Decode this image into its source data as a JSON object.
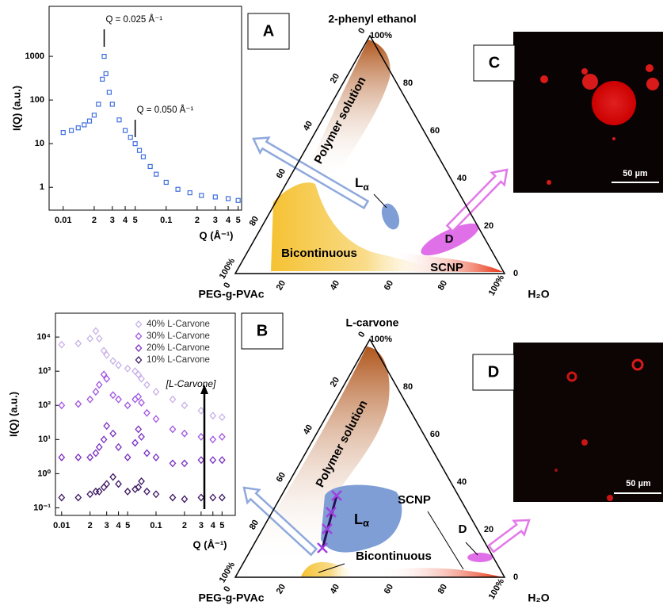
{
  "chart_data": [
    {
      "type": "scatter",
      "ylabel": "I(Q) (a.u.)",
      "xlabel": "Q (Å⁻¹)",
      "log_x": true,
      "log_y": true,
      "xlim": [
        0.0073,
        0.54
      ],
      "ylim": [
        0.3,
        14000
      ],
      "xticks": [
        0.01,
        {
          "value": 0.02,
          "label": "2"
        },
        {
          "value": 0.03,
          "label": "3"
        },
        {
          "value": 0.04,
          "label": "4"
        },
        {
          "value": 0.05,
          "label": "5"
        },
        0.1,
        {
          "value": 0.2,
          "label": "2"
        },
        {
          "value": 0.3,
          "label": "3"
        },
        {
          "value": 0.4,
          "label": "4"
        },
        {
          "value": 0.5,
          "label": "5"
        }
      ],
      "yticks": [
        1,
        10,
        100,
        1000
      ],
      "annotations": [
        {
          "text": "Q = 0.025 Å⁻¹",
          "x": 0.025
        },
        {
          "text": "Q = 0.050 Å⁻¹",
          "x": 0.05
        }
      ],
      "x": [
        0.01,
        0.012,
        0.014,
        0.016,
        0.018,
        0.02,
        0.022,
        0.024,
        0.025,
        0.026,
        0.028,
        0.03,
        0.035,
        0.04,
        0.045,
        0.05,
        0.055,
        0.06,
        0.07,
        0.08,
        0.1,
        0.13,
        0.17,
        0.22,
        0.3,
        0.4,
        0.5
      ],
      "series": [
        {
          "color": "#3f6fe0",
          "marker": "square",
          "values": [
            18,
            20,
            23,
            27,
            33,
            45,
            80,
            300,
            1000,
            400,
            150,
            80,
            35,
            20,
            14,
            10,
            7,
            5,
            3,
            2,
            1.3,
            0.9,
            0.75,
            0.65,
            0.6,
            0.55,
            0.5
          ]
        }
      ]
    },
    {
      "type": "scatter",
      "ylabel": "I(Q) (a.u.)",
      "xlabel": "Q (Å⁻¹)",
      "log_x": true,
      "log_y": true,
      "xlim": [
        0.0086,
        0.69
      ],
      "ylim": [
        0.06,
        50000
      ],
      "xticks": [
        0.01,
        {
          "value": 0.02,
          "label": "2"
        },
        {
          "value": 0.03,
          "label": "3"
        },
        {
          "value": 0.04,
          "label": "4"
        },
        {
          "value": 0.05,
          "label": "5"
        },
        0.1,
        {
          "value": 0.2,
          "label": "2"
        },
        {
          "value": 0.3,
          "label": "3"
        },
        {
          "value": 0.4,
          "label": "4"
        },
        {
          "value": 0.5,
          "label": "5"
        }
      ],
      "yticks": [
        {
          "value": 0.1,
          "label": "10⁻¹"
        },
        {
          "value": 1,
          "label": "10⁰"
        },
        {
          "value": 10,
          "label": "10¹"
        },
        {
          "value": 100,
          "label": "10²"
        },
        {
          "value": 1000,
          "label": "10³"
        },
        {
          "value": 10000,
          "label": "10⁴"
        }
      ],
      "annotation": "[L-Carvone]",
      "x": [
        0.01,
        0.015,
        0.02,
        0.023,
        0.025,
        0.028,
        0.03,
        0.035,
        0.04,
        0.05,
        0.06,
        0.065,
        0.07,
        0.08,
        0.1,
        0.15,
        0.2,
        0.3,
        0.4,
        0.5
      ],
      "series": [
        {
          "name": "40% L-Carvone",
          "color": "#c8b2e8",
          "marker": "diamond",
          "values": [
            6000,
            6500,
            9000,
            15000,
            9000,
            4000,
            3000,
            2000,
            1500,
            1200,
            1000,
            800,
            600,
            400,
            250,
            150,
            100,
            70,
            50,
            45
          ]
        },
        {
          "name": "30% L-Carvone",
          "color": "#a155e0",
          "marker": "diamond",
          "values": [
            100,
            110,
            150,
            250,
            400,
            800,
            600,
            200,
            150,
            100,
            150,
            180,
            120,
            60,
            40,
            20,
            15,
            12,
            10,
            12
          ]
        },
        {
          "name": "20% L-Carvone",
          "color": "#7a2fc0",
          "marker": "diamond",
          "values": [
            3,
            3,
            3,
            4,
            6,
            10,
            25,
            15,
            6,
            3,
            8,
            20,
            12,
            4,
            3,
            2,
            2,
            2.5,
            2.5,
            2.5
          ]
        },
        {
          "name": "10% L-Carvone",
          "color": "#3c1762",
          "marker": "diamond",
          "values": [
            0.2,
            0.2,
            0.25,
            0.3,
            0.3,
            0.4,
            0.5,
            0.8,
            0.5,
            0.3,
            0.35,
            0.4,
            0.6,
            0.3,
            0.25,
            0.2,
            0.18,
            0.2,
            0.2,
            0.2
          ]
        }
      ]
    }
  ],
  "panels": {
    "a": "A",
    "b": "B",
    "c": "C",
    "d": "D"
  },
  "ternaries": [
    {
      "title": "2-phenyl ethanol",
      "left_corner": "PEG-g-PVAc",
      "right_corner": "H₂O",
      "left_ticks": [
        "0",
        "20",
        "40",
        "60",
        "80",
        "100%"
      ],
      "right_ticks": [
        "0",
        "20",
        "40",
        "60",
        "80",
        "100%"
      ],
      "bottom_ticks": [
        "0",
        "20",
        "40",
        "60",
        "80",
        "100%"
      ],
      "regions": {
        "polymer_solution": "Polymer solution",
        "bicontinuous": "Bicontinuous",
        "scnp": "SCNP",
        "lamellar": {
          "main": "L",
          "sub": "α"
        },
        "droplet": "D"
      }
    },
    {
      "title": "L-carvone",
      "left_corner": "PEG-g-PVAc",
      "right_corner": "H₂O",
      "left_ticks": [
        "0",
        "20",
        "40",
        "60",
        "80",
        "100%"
      ],
      "right_ticks": [
        "0",
        "20",
        "40",
        "60",
        "80",
        "100%"
      ],
      "bottom_ticks": [
        "0",
        "20",
        "40",
        "60",
        "80",
        "100%"
      ],
      "regions": {
        "polymer_solution": "Polymer solution",
        "bicontinuous": "Bicontinuous",
        "scnp": "SCNP",
        "lamellar": {
          "main": "L",
          "sub": "α"
        },
        "droplet": "D"
      }
    }
  ],
  "micrographs": [
    {
      "scale_bar": "50 µm"
    },
    {
      "scale_bar": "50 µm"
    }
  ]
}
